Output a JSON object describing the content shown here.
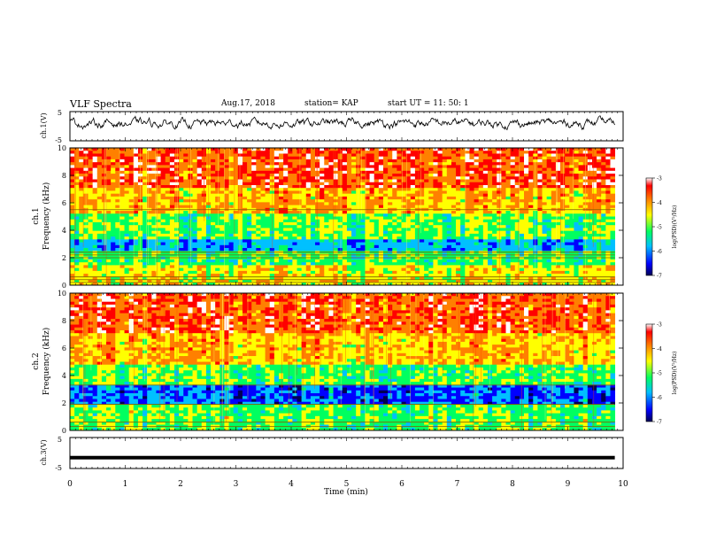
{
  "header": {
    "title": "VLF Spectra",
    "date": "Aug.17, 2018",
    "station": "station= KAP",
    "start": "start  UT =   11: 50: 1"
  },
  "colors": {
    "frame": "#000000",
    "trace": "#000000",
    "colormap": [
      "#000055",
      "#0000ff",
      "#00c0ff",
      "#00ff60",
      "#ffff00",
      "#ff8000",
      "#ff0000",
      "#ffffff"
    ]
  },
  "chart_data": [
    {
      "type": "line",
      "panel": "ch1-waveform",
      "ylabel": "ch.1(V)",
      "ylim": [
        -5,
        5
      ],
      "yticks": [
        "5",
        "-5"
      ],
      "xlim": [
        0,
        10
      ],
      "series": [
        {
          "values_summary": "noisy signal fluctuating between about -1 and 3 V"
        }
      ],
      "grid": false
    },
    {
      "type": "heatmap",
      "panel": "ch1-spectrogram",
      "ylabel_channel": "ch.1",
      "ylabel": "Frequency  (kHz)",
      "ylim": [
        0,
        10
      ],
      "yticks": [
        "0",
        "2",
        "4",
        "6",
        "8",
        "10"
      ],
      "xlim": [
        0,
        10
      ],
      "colorbar": {
        "label": "log(PSD)(V²/Hz)",
        "range": [
          -7,
          -3
        ],
        "ticks": [
          "-3",
          "-4",
          "-5",
          "-6",
          "-7"
        ]
      },
      "bands": [
        {
          "from": 0,
          "to": 1.5,
          "level": -4.5
        },
        {
          "from": 1.5,
          "to": 2.5,
          "level": -5.1
        },
        {
          "from": 2.5,
          "to": 3.4,
          "level": -5.9
        },
        {
          "from": 3.4,
          "to": 5.2,
          "level": -5.0
        },
        {
          "from": 5.2,
          "to": 7.0,
          "level": -4.2
        },
        {
          "from": 7.0,
          "to": 10.0,
          "level": -3.6
        }
      ],
      "lines_khz": [
        0.2,
        0.4,
        0.6,
        2.0,
        2.2,
        2.4,
        5.5
      ]
    },
    {
      "type": "heatmap",
      "panel": "ch2-spectrogram",
      "ylabel_channel": "ch.2",
      "ylabel": "Frequency  (kHz)",
      "ylim": [
        0,
        10
      ],
      "yticks": [
        "0",
        "2",
        "4",
        "6",
        "8",
        "10"
      ],
      "xlim": [
        0,
        10
      ],
      "colorbar": {
        "label": "log(PSD)(V²/Hz)",
        "range": [
          -7,
          -3
        ],
        "ticks": [
          "-3",
          "-4",
          "-5",
          "-6",
          "-7"
        ]
      },
      "bands": [
        {
          "from": 0,
          "to": 1.8,
          "level": -5.0
        },
        {
          "from": 1.8,
          "to": 3.3,
          "level": -6.2
        },
        {
          "from": 3.3,
          "to": 4.8,
          "level": -5.0
        },
        {
          "from": 4.8,
          "to": 7.0,
          "level": -4.2
        },
        {
          "from": 7.0,
          "to": 10.0,
          "level": -3.6
        }
      ],
      "lines_khz": [
        0.3,
        0.6,
        1.9,
        3.3
      ]
    },
    {
      "type": "line",
      "panel": "ch3-waveform",
      "ylabel": "ch.3(V)",
      "ylim": [
        -5,
        5
      ],
      "yticks": [
        "5",
        "0",
        "-5"
      ],
      "xlim": [
        0,
        10
      ],
      "series": [
        {
          "values_summary": "flat at about -1.5 V"
        }
      ],
      "xlabel": "Time  (min)",
      "xticks": [
        "0",
        "1",
        "2",
        "3",
        "4",
        "5",
        "6",
        "7",
        "8",
        "9",
        "10"
      ],
      "grid": false
    }
  ]
}
